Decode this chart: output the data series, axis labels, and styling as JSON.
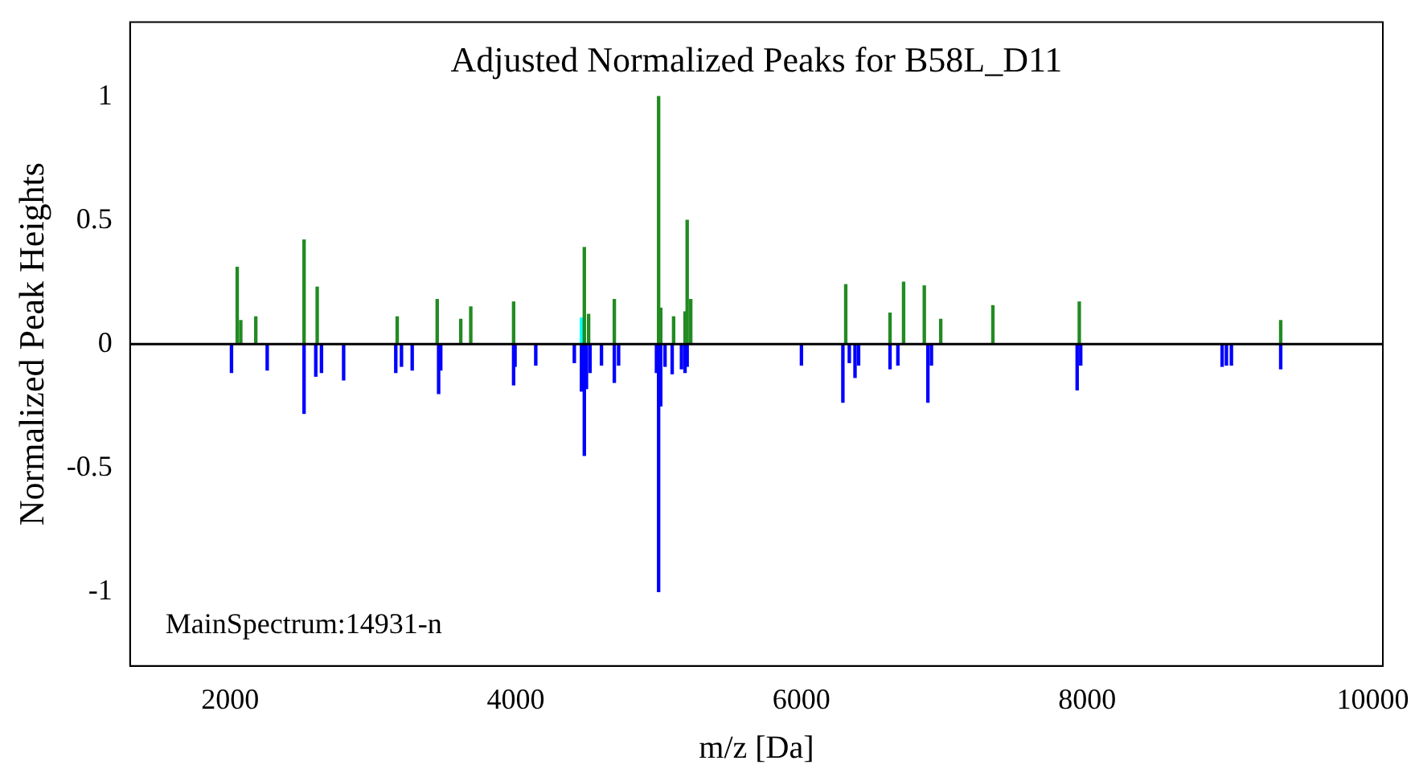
{
  "chart_data": {
    "type": "bar",
    "title": "Adjusted Normalized Peaks for B58L_D11",
    "xlabel": "m/z [Da]",
    "ylabel": "Normalized Peak Heights",
    "annotations": [
      "MainSpectrum:14931-n"
    ],
    "xlim": [
      1300,
      10070
    ],
    "ylim": [
      -1.3,
      1.3
    ],
    "xticks": [
      2000,
      4000,
      6000,
      8000,
      10000
    ],
    "yticks": [
      -1,
      -0.5,
      0,
      0.5,
      1
    ],
    "grid": false,
    "legend": false,
    "ref_lines": [
      {
        "axis": "y",
        "value": 0,
        "color": "#000000"
      }
    ],
    "series": [
      {
        "color": "#228b22",
        "x": [
          2050,
          2075,
          2180,
          2518,
          2610,
          3170,
          3450,
          3615,
          3685,
          3985,
          4480,
          4510,
          4690,
          5000,
          5015,
          5105,
          5185,
          5200,
          5225,
          6310,
          6620,
          6715,
          6860,
          6975,
          7340,
          7945,
          9355
        ],
        "values": [
          0.31,
          0.095,
          0.11,
          0.42,
          0.23,
          0.11,
          0.18,
          0.1,
          0.15,
          0.17,
          0.39,
          0.12,
          0.18,
          1.0,
          0.145,
          0.11,
          0.13,
          0.5,
          0.18,
          0.24,
          0.125,
          0.25,
          0.235,
          0.1,
          0.155,
          0.17,
          0.095
        ]
      },
      {
        "color": "#0000ff",
        "x": [
          2010,
          2260,
          2518,
          2600,
          2640,
          2795,
          3160,
          3200,
          3275,
          3460,
          3475,
          3985,
          3995,
          4140,
          4410,
          4460,
          4480,
          4495,
          4520,
          4600,
          4690,
          4720,
          4985,
          5000,
          5015,
          5045,
          5095,
          5160,
          5185,
          5200,
          6000,
          6290,
          6335,
          6375,
          6400,
          6620,
          6675,
          6885,
          6910,
          7930,
          7955,
          8945,
          8975,
          9010,
          9355
        ],
        "values": [
          -0.115,
          -0.105,
          -0.28,
          -0.13,
          -0.115,
          -0.145,
          -0.115,
          -0.09,
          -0.105,
          -0.2,
          -0.105,
          -0.165,
          -0.09,
          -0.085,
          -0.075,
          -0.19,
          -0.45,
          -0.18,
          -0.115,
          -0.085,
          -0.155,
          -0.085,
          -0.115,
          -1.0,
          -0.25,
          -0.09,
          -0.12,
          -0.1,
          -0.115,
          -0.09,
          -0.085,
          -0.235,
          -0.075,
          -0.135,
          -0.085,
          -0.1,
          -0.085,
          -0.235,
          -0.085,
          -0.185,
          -0.085,
          -0.09,
          -0.085,
          -0.085,
          -0.1
        ]
      },
      {
        "color": "#00ffff",
        "x": [
          4460
        ],
        "values": [
          0.105
        ]
      }
    ]
  }
}
